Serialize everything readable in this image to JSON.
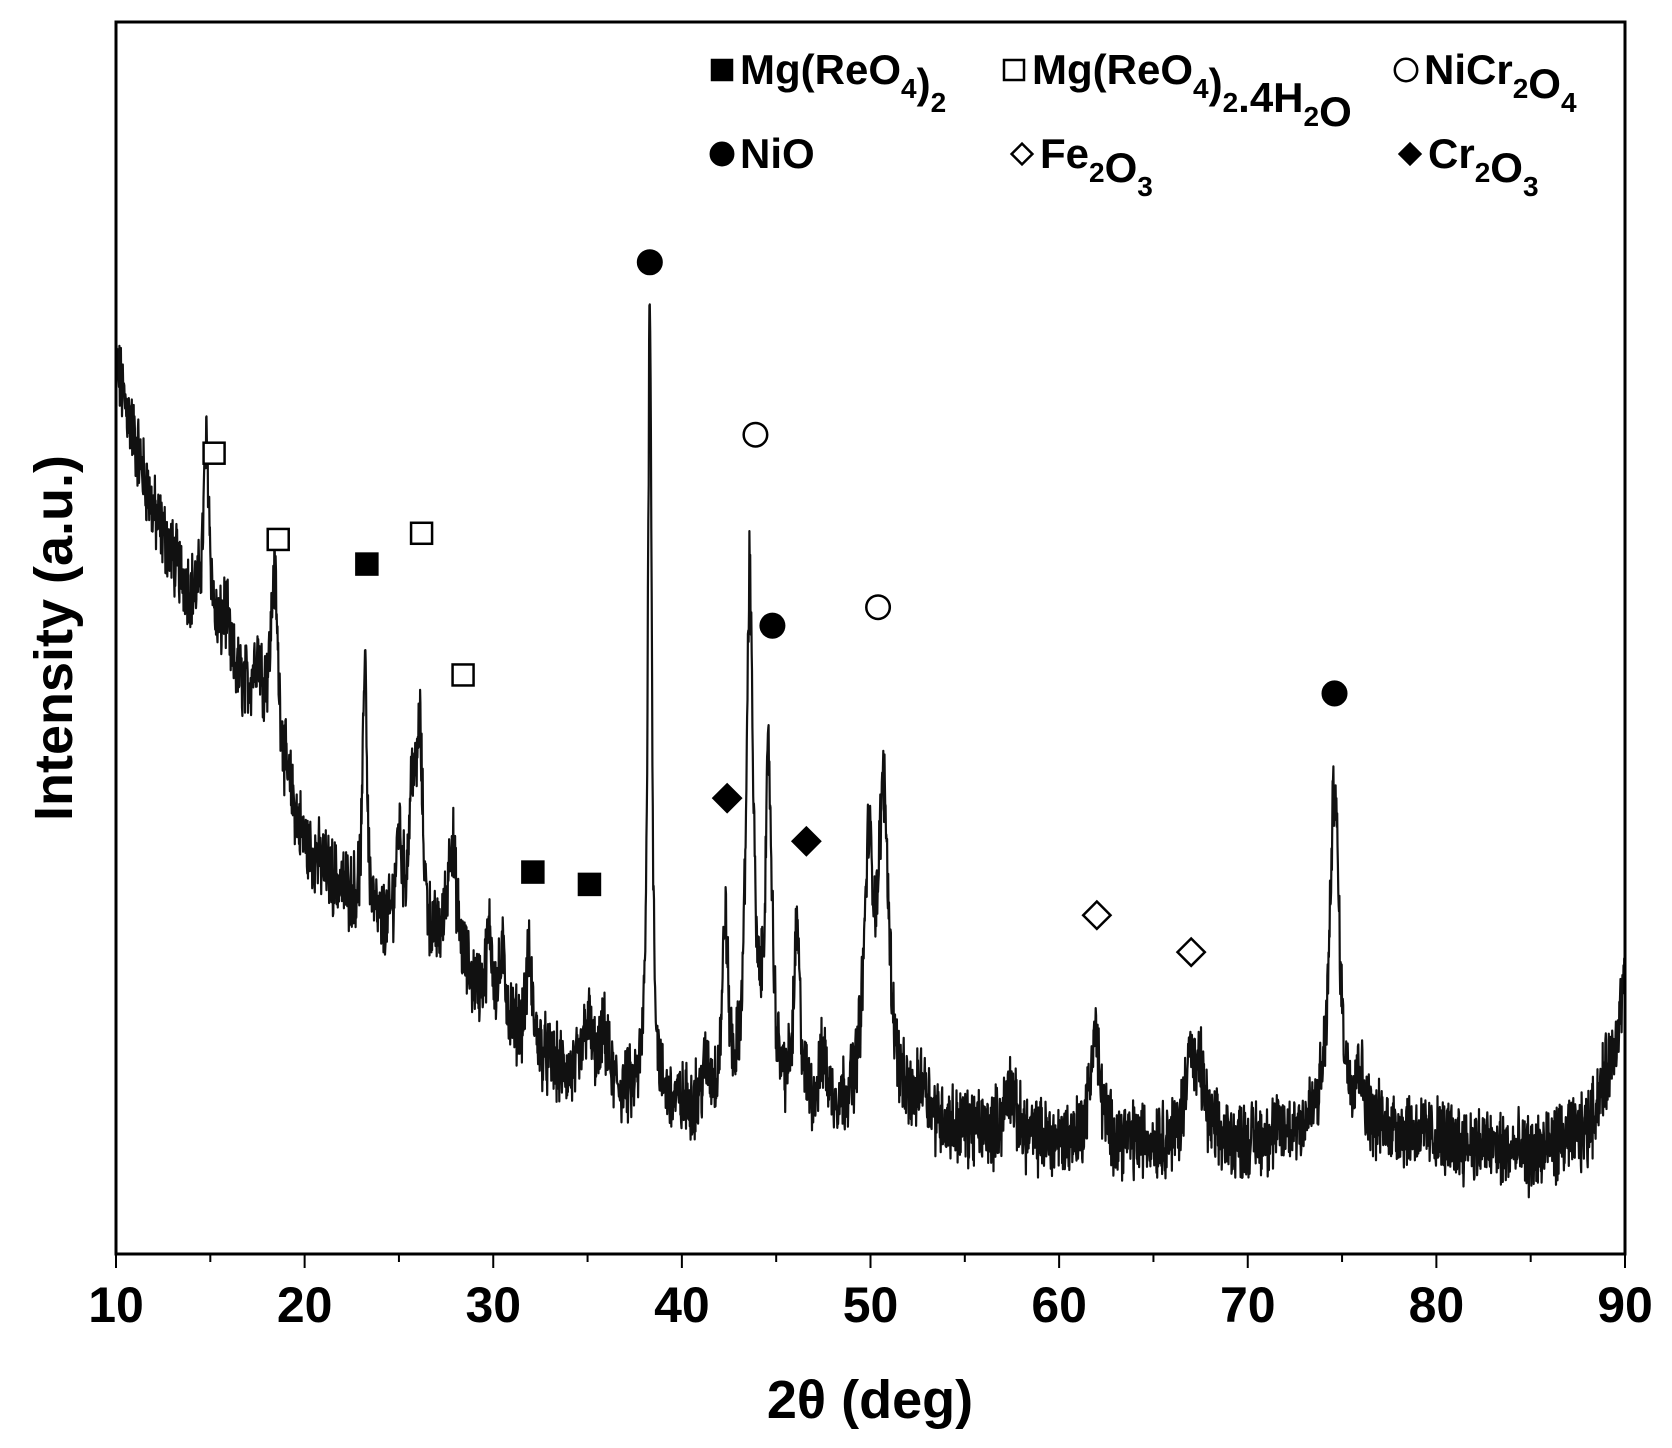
{
  "chart_data": {
    "type": "line",
    "title": "",
    "xlabel": "2θ (deg)",
    "ylabel": "Intensity (a.u.)",
    "xlim": [
      10,
      90
    ],
    "ylim": [
      0,
      100
    ],
    "x_ticks": [
      "10",
      "20",
      "30",
      "40",
      "50",
      "60",
      "70",
      "80",
      "90"
    ],
    "y_ticks_labeled": false,
    "grid": false,
    "legend_position": "top-right",
    "legend": [
      {
        "symbol": "filled-square",
        "parts": [
          [
            "Mg(ReO",
            ""
          ],
          [
            "4",
            "sub"
          ],
          [
            ")",
            ""
          ],
          [
            "2",
            "sub"
          ]
        ]
      },
      {
        "symbol": "open-square",
        "parts": [
          [
            "Mg(ReO",
            ""
          ],
          [
            "4",
            "sub"
          ],
          [
            ")",
            ""
          ],
          [
            "2",
            "sub"
          ],
          [
            ".4H",
            ""
          ],
          [
            "2",
            "sub"
          ],
          [
            "O",
            ""
          ]
        ]
      },
      {
        "symbol": "open-circle",
        "parts": [
          [
            "NiCr",
            ""
          ],
          [
            "2",
            "sub"
          ],
          [
            "O",
            ""
          ],
          [
            "4",
            "sub"
          ]
        ]
      },
      {
        "symbol": "filled-circle",
        "parts": [
          [
            "NiO",
            ""
          ]
        ]
      },
      {
        "symbol": "open-diamond",
        "parts": [
          [
            "Fe",
            ""
          ],
          [
            "2",
            "sub"
          ],
          [
            "O",
            ""
          ],
          [
            "3",
            "sub"
          ]
        ]
      },
      {
        "symbol": "filled-diamond",
        "parts": [
          [
            "Cr",
            ""
          ],
          [
            "2",
            "sub"
          ],
          [
            "O",
            ""
          ],
          [
            "3",
            "sub"
          ]
        ]
      }
    ],
    "baseline": [
      [
        10,
        72
      ],
      [
        12,
        60
      ],
      [
        14,
        53
      ],
      [
        15.5,
        48
      ],
      [
        18,
        43
      ],
      [
        20,
        33
      ],
      [
        24,
        26
      ],
      [
        28,
        23
      ],
      [
        30,
        19
      ],
      [
        34,
        14
      ],
      [
        38,
        12
      ],
      [
        42,
        11
      ],
      [
        50,
        11
      ],
      [
        60,
        9
      ],
      [
        70,
        9
      ],
      [
        73,
        10
      ],
      [
        78,
        10
      ],
      [
        85,
        8
      ],
      [
        88,
        10
      ],
      [
        89.3,
        16
      ],
      [
        90,
        22
      ]
    ],
    "peaks": [
      {
        "x": 14.8,
        "height": 15,
        "width": 0.2
      },
      {
        "x": 15.8,
        "height": 4,
        "width": 0.25
      },
      {
        "x": 17.5,
        "height": 4,
        "width": 0.25
      },
      {
        "x": 18.4,
        "height": 14,
        "width": 0.22
      },
      {
        "x": 23.2,
        "height": 22,
        "width": 0.12
      },
      {
        "x": 25.0,
        "height": 8,
        "width": 0.2
      },
      {
        "x": 25.7,
        "height": 11,
        "width": 0.2
      },
      {
        "x": 26.1,
        "height": 16,
        "width": 0.2
      },
      {
        "x": 27.8,
        "height": 10,
        "width": 0.3
      },
      {
        "x": 29.8,
        "height": 6,
        "width": 0.2
      },
      {
        "x": 30.5,
        "height": 5,
        "width": 0.2
      },
      {
        "x": 31.9,
        "height": 7,
        "width": 0.2
      },
      {
        "x": 35.0,
        "height": 5,
        "width": 0.3
      },
      {
        "x": 35.9,
        "height": 4,
        "width": 0.25
      },
      {
        "x": 38.3,
        "height": 67,
        "width": 0.12
      },
      {
        "x": 41.3,
        "height": 3,
        "width": 0.3
      },
      {
        "x": 42.3,
        "height": 15,
        "width": 0.18
      },
      {
        "x": 43.6,
        "height": 43,
        "width": 0.22
      },
      {
        "x": 44.6,
        "height": 27,
        "width": 0.22
      },
      {
        "x": 46.1,
        "height": 14,
        "width": 0.2
      },
      {
        "x": 47.5,
        "height": 4,
        "width": 0.25
      },
      {
        "x": 49.9,
        "height": 19,
        "width": 0.3
      },
      {
        "x": 50.7,
        "height": 25,
        "width": 0.35
      },
      {
        "x": 52.8,
        "height": 3,
        "width": 0.3
      },
      {
        "x": 57.4,
        "height": 4,
        "width": 0.3
      },
      {
        "x": 61.9,
        "height": 9,
        "width": 0.3
      },
      {
        "x": 66.9,
        "height": 7,
        "width": 0.25
      },
      {
        "x": 67.5,
        "height": 5,
        "width": 0.3
      },
      {
        "x": 74.6,
        "height": 28,
        "width": 0.3
      },
      {
        "x": 75.9,
        "height": 4,
        "width": 0.3
      }
    ],
    "noise": 2.5,
    "peak_markers": [
      {
        "x": 15.2,
        "y": 65,
        "symbol": "open-square"
      },
      {
        "x": 18.6,
        "y": 58,
        "symbol": "open-square"
      },
      {
        "x": 23.3,
        "y": 56,
        "symbol": "filled-square"
      },
      {
        "x": 26.2,
        "y": 58.5,
        "symbol": "open-square"
      },
      {
        "x": 28.4,
        "y": 47,
        "symbol": "open-square"
      },
      {
        "x": 32.1,
        "y": 31,
        "symbol": "filled-square"
      },
      {
        "x": 35.1,
        "y": 30,
        "symbol": "filled-square"
      },
      {
        "x": 38.3,
        "y": 80.5,
        "symbol": "filled-circle"
      },
      {
        "x": 43.9,
        "y": 66.5,
        "symbol": "open-circle"
      },
      {
        "x": 42.4,
        "y": 37,
        "symbol": "filled-diamond"
      },
      {
        "x": 44.8,
        "y": 51,
        "symbol": "filled-circle"
      },
      {
        "x": 46.6,
        "y": 33.5,
        "symbol": "filled-diamond"
      },
      {
        "x": 50.4,
        "y": 52.5,
        "symbol": "open-circle"
      },
      {
        "x": 62.0,
        "y": 27.5,
        "symbol": "open-diamond"
      },
      {
        "x": 67.0,
        "y": 24.5,
        "symbol": "open-diamond"
      },
      {
        "x": 74.6,
        "y": 45.5,
        "symbol": "filled-circle"
      }
    ]
  }
}
